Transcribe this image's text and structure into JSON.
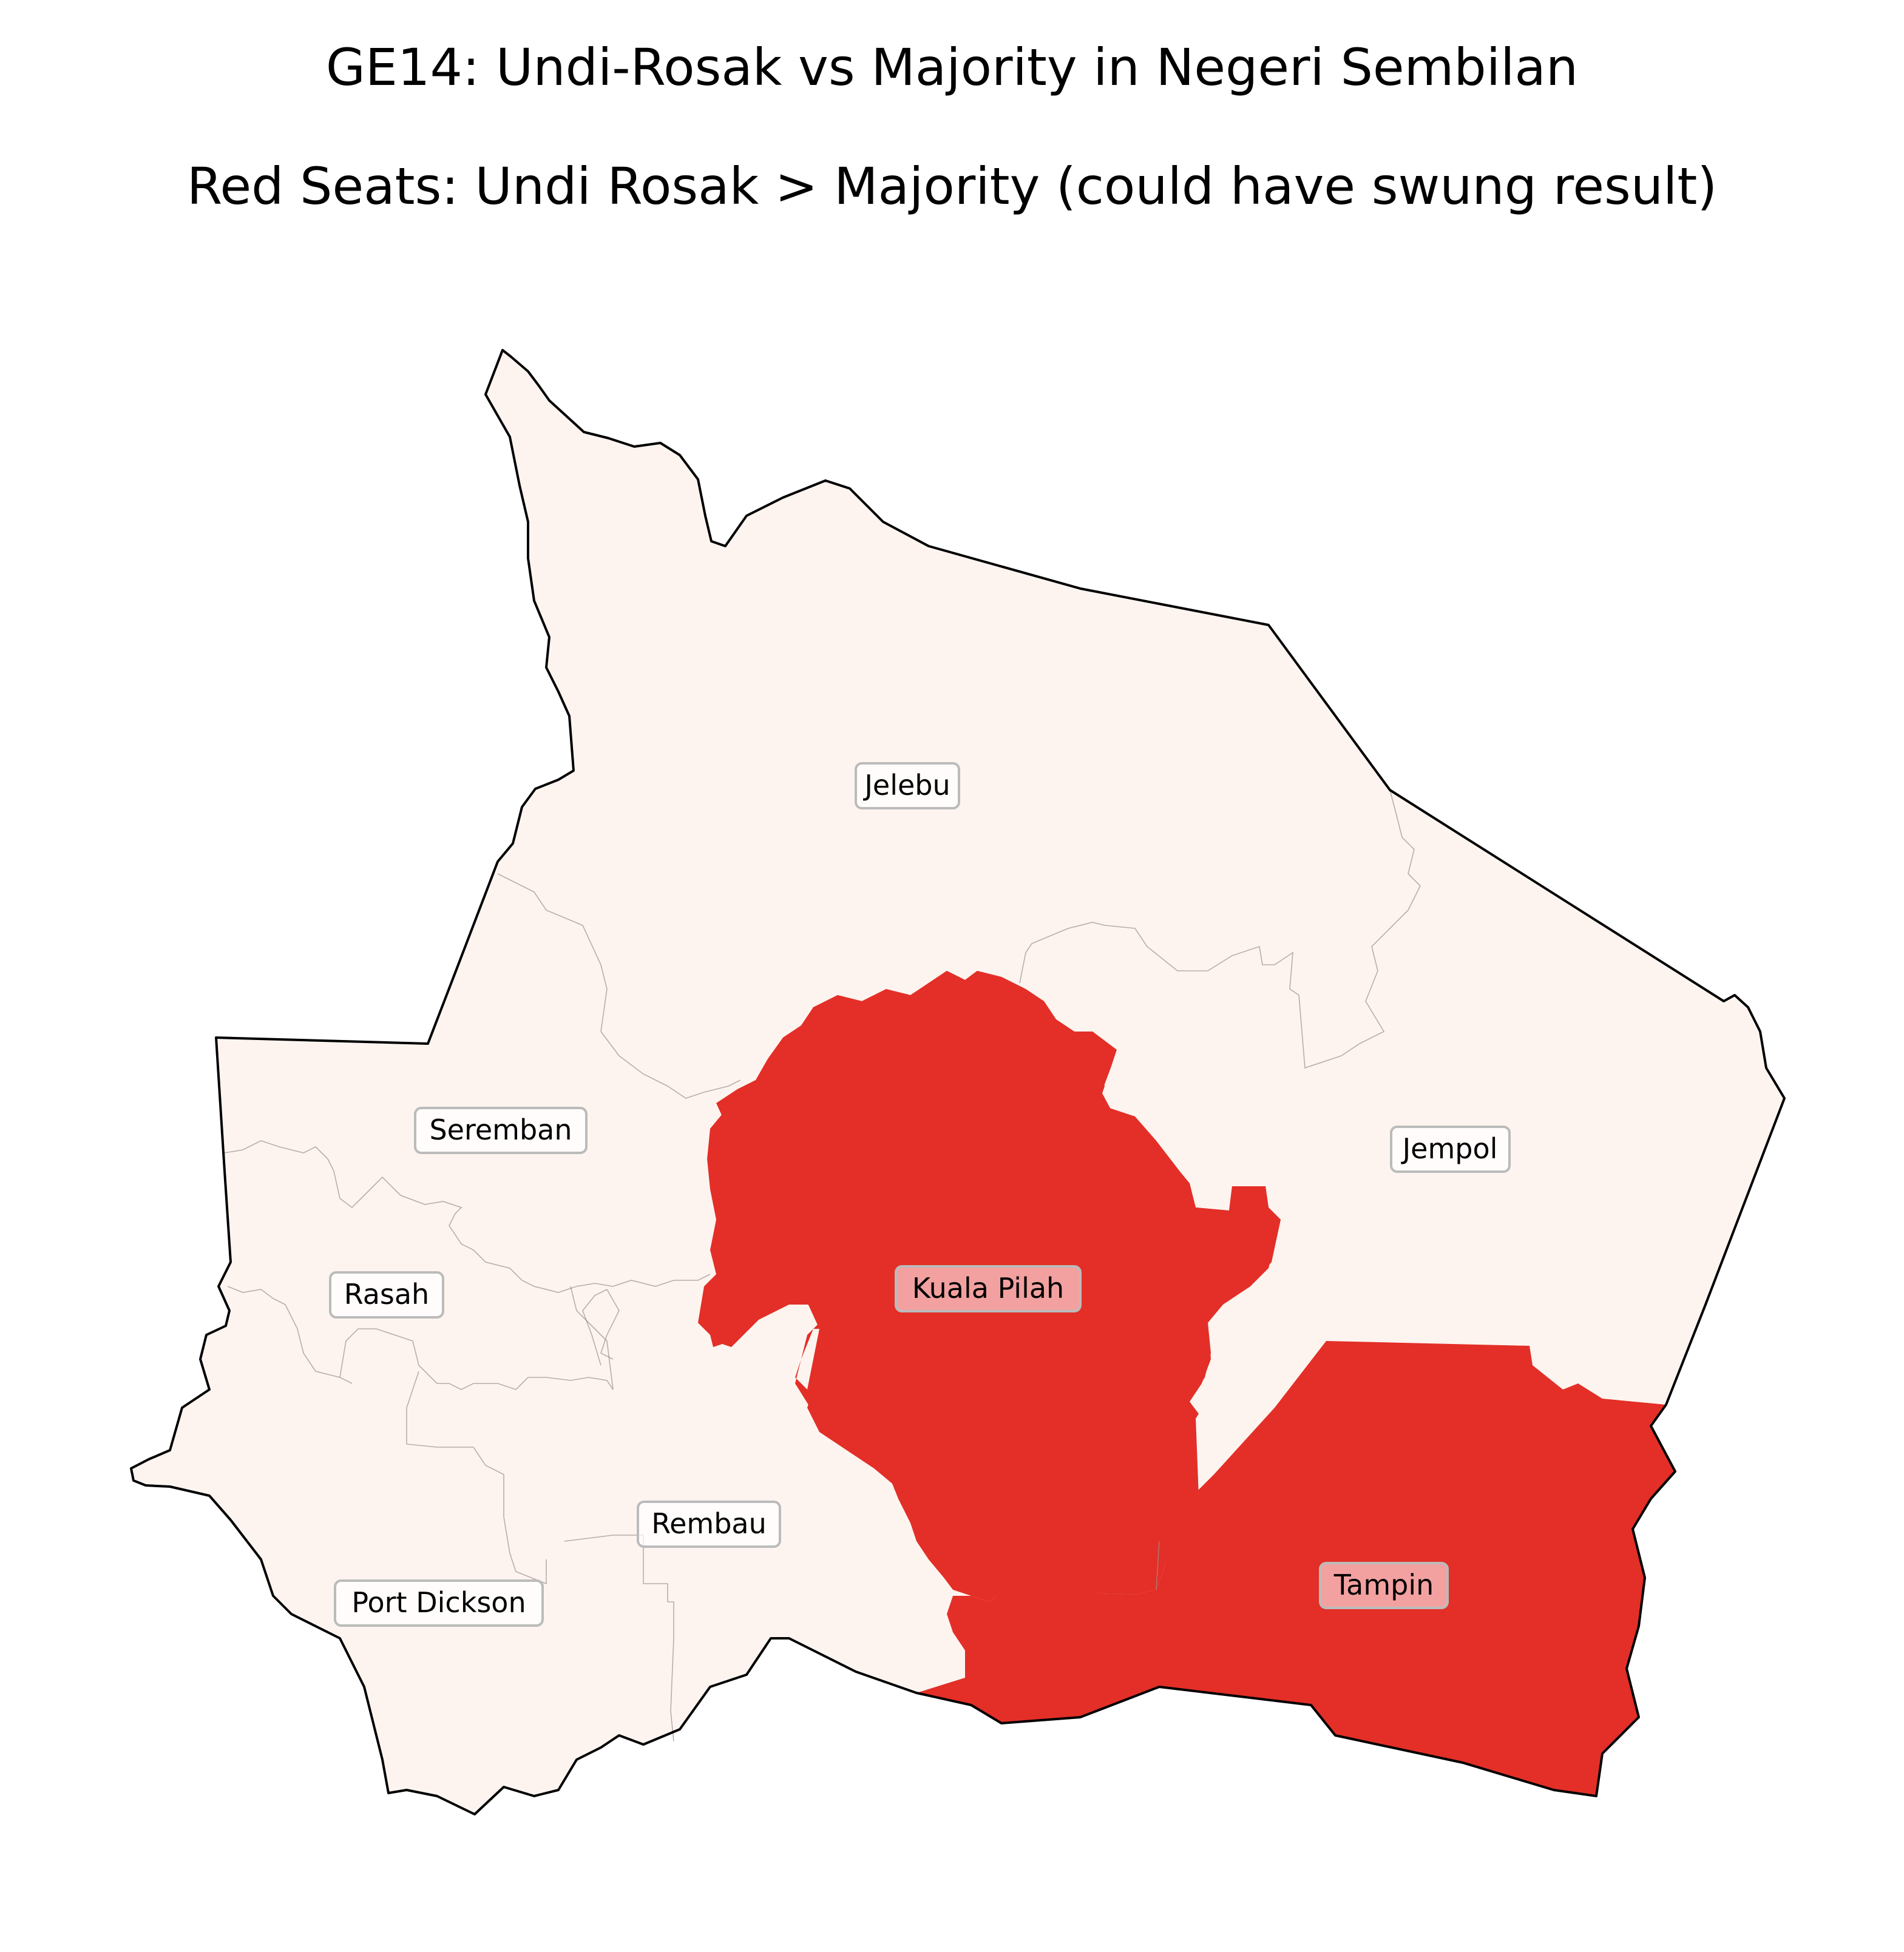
{
  "title": "GE14: Undi-Rosak vs Majority in Negeri Sembilan",
  "subtitle": "Red Seats: Undi Rosak > Majority (could have swung result)",
  "colors": {
    "swing": "#e32f27",
    "safe": "#fdf4f0",
    "swing_label_bg": "#f2a1a0",
    "border": "#000000"
  },
  "seats": [
    {
      "name": "Jelebu",
      "swing": false
    },
    {
      "name": "Jempol",
      "swing": false
    },
    {
      "name": "Seremban",
      "swing": false
    },
    {
      "name": "Kuala Pilah",
      "swing": true
    },
    {
      "name": "Rasah",
      "swing": false
    },
    {
      "name": "Rembau",
      "swing": false
    },
    {
      "name": "Port Dickson",
      "swing": false
    },
    {
      "name": "Tampin",
      "swing": true
    }
  ]
}
